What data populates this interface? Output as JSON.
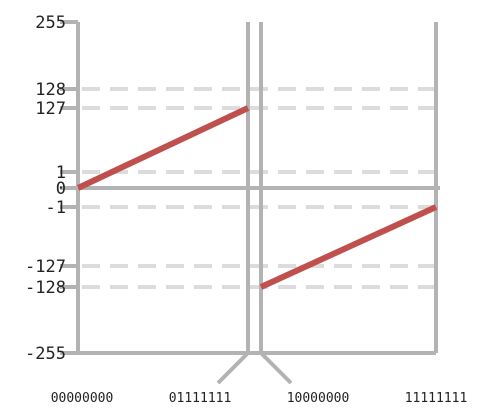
{
  "chart_data": {
    "type": "line",
    "x_tick_labels": [
      "00000000",
      "01111111",
      "10000000",
      "11111111"
    ],
    "y_ticks": [
      255,
      128,
      127,
      1,
      0,
      -1,
      -127,
      -128,
      -255
    ],
    "y_tick_labels": [
      "255",
      "128",
      "127",
      "1",
      "0",
      "-1",
      "-127",
      "-128",
      "-255"
    ],
    "dashed_guides_at": [
      128,
      127,
      1,
      -1,
      -127,
      -128
    ],
    "ylim": [
      -255,
      255
    ],
    "series": [
      {
        "segments": [
          {
            "x": [
              0,
              127
            ],
            "y": [
              0,
              127
            ]
          },
          {
            "x": [
              128,
              255
            ],
            "y": [
              -128,
              -1
            ]
          }
        ],
        "color": "#c0504d"
      }
    ],
    "grid": false,
    "frame_color": "#b3b3b3",
    "guide_color": "#dcdcdc"
  }
}
